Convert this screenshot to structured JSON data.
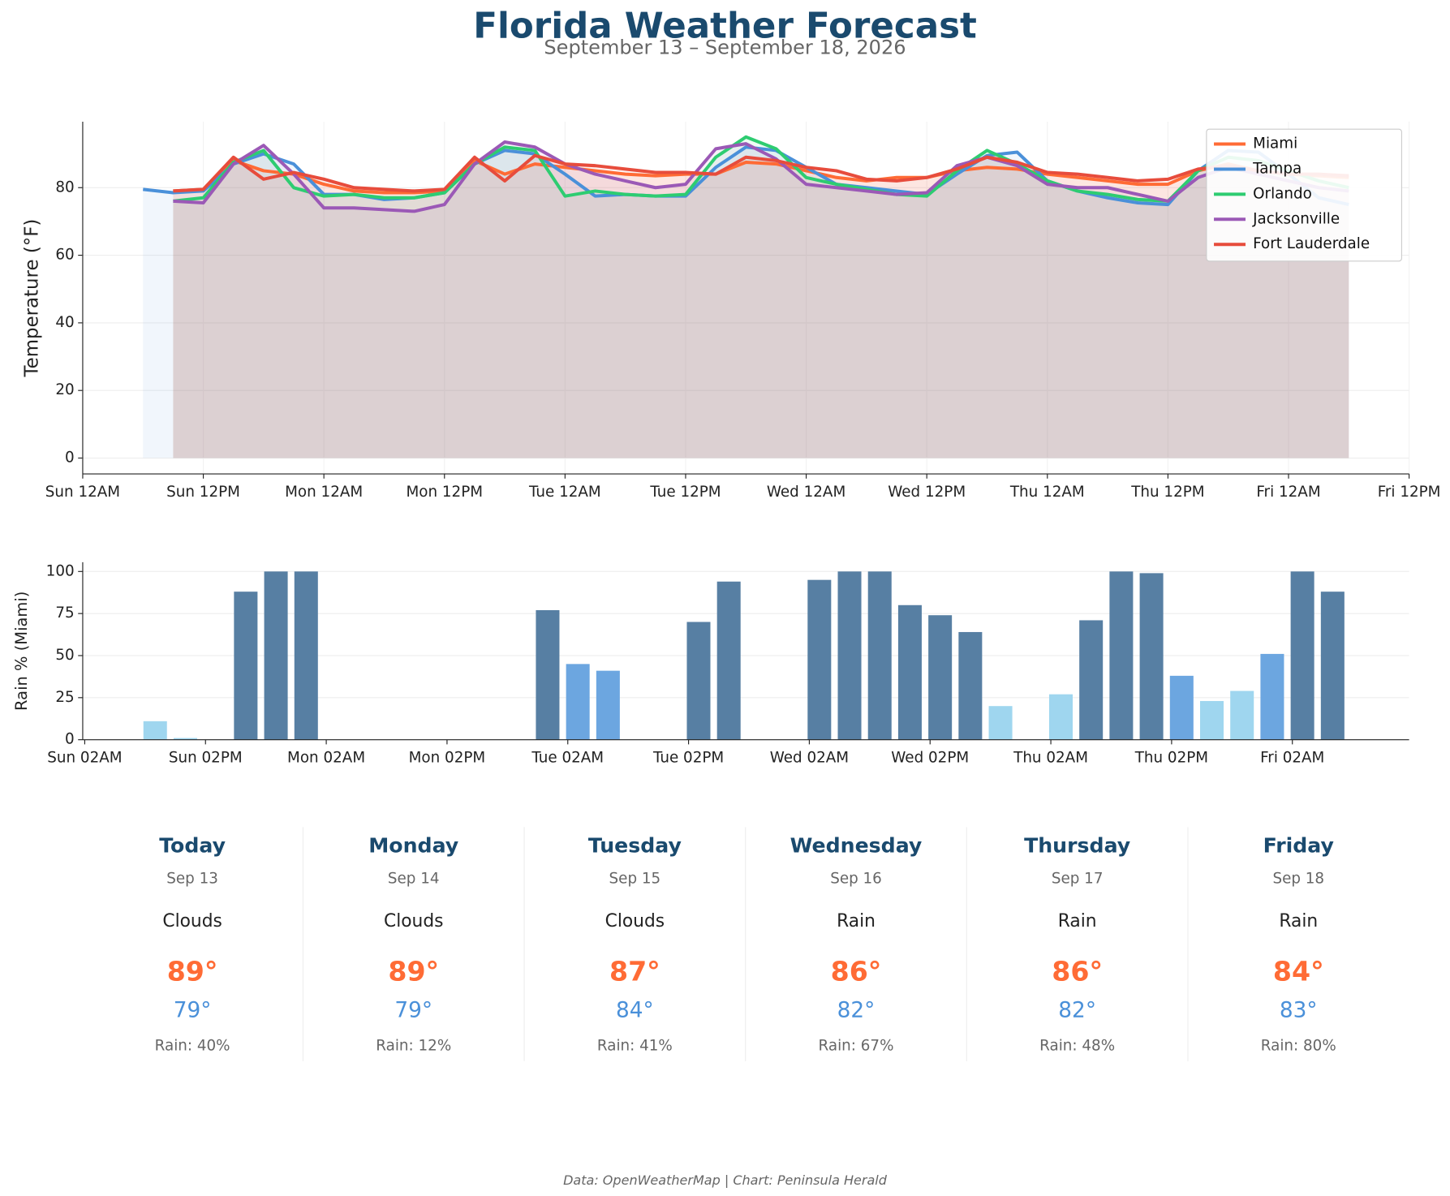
{
  "chart_data": [
    {
      "type": "line",
      "title": "Florida Weather Forecast",
      "subtitle": "September 13 – September 18, 2026",
      "ylabel": "Temperature (°F)",
      "x": [
        6,
        9,
        12,
        15,
        18,
        21,
        24,
        27,
        30,
        33,
        36,
        39,
        42,
        45,
        48,
        51,
        54,
        57,
        60,
        63,
        66,
        69,
        72,
        75,
        78,
        81,
        84,
        87,
        90,
        93,
        96,
        99,
        102,
        105,
        108,
        111,
        114,
        117,
        120,
        123,
        126
      ],
      "xlim": [
        0,
        132
      ],
      "xticks": [
        {
          "value": 0,
          "label": "Sun 12AM"
        },
        {
          "value": 12,
          "label": "Sun 12PM"
        },
        {
          "value": 24,
          "label": "Mon 12AM"
        },
        {
          "value": 36,
          "label": "Mon 12PM"
        },
        {
          "value": 48,
          "label": "Tue 12AM"
        },
        {
          "value": 60,
          "label": "Tue 12PM"
        },
        {
          "value": 72,
          "label": "Wed 12AM"
        },
        {
          "value": 84,
          "label": "Wed 12PM"
        },
        {
          "value": 96,
          "label": "Thu 12AM"
        },
        {
          "value": 108,
          "label": "Thu 12PM"
        },
        {
          "value": 120,
          "label": "Fri 12AM"
        },
        {
          "value": 132,
          "label": "Fri 12PM"
        }
      ],
      "ylim": [
        -4.7,
        99.5
      ],
      "yticks": [
        0,
        20,
        40,
        60,
        80
      ],
      "grid": true,
      "legend": "upper right",
      "fill": true,
      "series": [
        {
          "name": "Miami",
          "color": "#ff6b35",
          "values": [
            null,
            79,
            79.5,
            88,
            85,
            84,
            81,
            79,
            78.5,
            78.5,
            79,
            88,
            84,
            87,
            86,
            85,
            84,
            83.5,
            84,
            84,
            87.5,
            87,
            85,
            83,
            82,
            83,
            83,
            85,
            86,
            85.5,
            84,
            83,
            82,
            81,
            81,
            85,
            87,
            85,
            84,
            83.5,
            83
          ]
        },
        {
          "name": "Tampa",
          "color": "#4a90d9",
          "values": [
            79.5,
            78.5,
            79,
            87,
            90,
            87,
            78,
            78,
            76.5,
            77,
            78.5,
            87,
            91,
            90,
            84,
            77.5,
            78,
            77.5,
            77.5,
            86,
            92,
            91,
            86,
            81,
            80,
            79,
            78,
            84,
            89.5,
            90.5,
            82,
            79,
            77,
            75.5,
            75,
            85,
            91,
            90.5,
            84,
            77,
            75
          ]
        },
        {
          "name": "Orlando",
          "color": "#2ecc71",
          "values": [
            null,
            76,
            77,
            87.5,
            91,
            80,
            77.5,
            78,
            77,
            77,
            78.5,
            87,
            92,
            91,
            77.5,
            79,
            78,
            77.5,
            78,
            89,
            95,
            91.5,
            83,
            81,
            79.5,
            78,
            77.5,
            85,
            91,
            87,
            82,
            79,
            78,
            76.5,
            76,
            85,
            89,
            88,
            85,
            82,
            80
          ]
        },
        {
          "name": "Jacksonville",
          "color": "#9b59b6",
          "values": [
            null,
            76,
            75.5,
            87,
            92.5,
            84,
            74,
            74,
            73.5,
            73,
            75,
            87,
            93.5,
            92,
            87,
            84,
            82,
            80,
            81,
            91.5,
            93,
            88.5,
            81,
            80,
            79,
            78,
            78.5,
            86.5,
            89,
            86.5,
            81,
            80,
            80,
            78,
            76,
            83,
            86,
            84,
            82,
            80,
            79
          ]
        },
        {
          "name": "Fort Lauderdale",
          "color": "#e74c3c",
          "values": [
            null,
            79,
            79.5,
            89,
            82.5,
            84.5,
            82.5,
            80,
            79.5,
            79,
            79.5,
            89,
            82,
            89.5,
            87,
            86.5,
            85.5,
            84.5,
            84.5,
            84,
            89,
            88,
            86,
            85,
            82.5,
            82,
            83,
            85.5,
            89,
            87.5,
            84.5,
            84,
            83,
            82,
            82.5,
            85.5,
            86.5,
            85,
            84,
            84,
            83.5
          ]
        }
      ]
    },
    {
      "type": "bar",
      "ylabel": "Rain % (Miami)",
      "x": [
        9,
        12,
        15,
        18,
        21,
        24,
        27,
        30,
        33,
        36,
        39,
        42,
        45,
        48,
        51,
        54,
        57,
        60,
        63,
        66,
        69,
        72,
        75,
        78,
        81,
        84,
        87,
        90,
        93,
        96,
        99,
        102,
        105,
        108,
        111,
        114,
        117,
        120,
        123,
        126
      ],
      "values": [
        11,
        1,
        0,
        88,
        100,
        100,
        0,
        0,
        0,
        0,
        0,
        0,
        0,
        77,
        45,
        41,
        0,
        0,
        70,
        94,
        0,
        0,
        95,
        100,
        100,
        80,
        74,
        64,
        20,
        0,
        27,
        71,
        100,
        99,
        38,
        23,
        29,
        51,
        100,
        88
      ],
      "colors": [
        "#9fd6ef",
        "#9fd6ef",
        "#9fd6ef",
        "#577fa3",
        "#577fa3",
        "#577fa3",
        "#9fd6ef",
        "#9fd6ef",
        "#9fd6ef",
        "#9fd6ef",
        "#9fd6ef",
        "#9fd6ef",
        "#9fd6ef",
        "#577fa3",
        "#6ca6e0",
        "#6ca6e0",
        "#9fd6ef",
        "#9fd6ef",
        "#577fa3",
        "#577fa3",
        "#9fd6ef",
        "#9fd6ef",
        "#577fa3",
        "#577fa3",
        "#577fa3",
        "#577fa3",
        "#577fa3",
        "#577fa3",
        "#9fd6ef",
        "#9fd6ef",
        "#9fd6ef",
        "#577fa3",
        "#577fa3",
        "#577fa3",
        "#6ca6e0",
        "#9fd6ef",
        "#9fd6ef",
        "#6ca6e0",
        "#577fa3",
        "#577fa3"
      ],
      "xlim": [
        1.8,
        133.6
      ],
      "xticks": [
        {
          "value": 2,
          "label": "Sun 02AM"
        },
        {
          "value": 14,
          "label": "Sun 02PM"
        },
        {
          "value": 26,
          "label": "Mon 02AM"
        },
        {
          "value": 38,
          "label": "Mon 02PM"
        },
        {
          "value": 50,
          "label": "Tue 02AM"
        },
        {
          "value": 62,
          "label": "Tue 02PM"
        },
        {
          "value": 74,
          "label": "Wed 02AM"
        },
        {
          "value": 86,
          "label": "Wed 02PM"
        },
        {
          "value": 98,
          "label": "Thu 02AM"
        },
        {
          "value": 110,
          "label": "Thu 02PM"
        },
        {
          "value": 122,
          "label": "Fri 02AM"
        }
      ],
      "ylim": [
        0,
        105.5
      ],
      "yticks": [
        0,
        25,
        50,
        75,
        100
      ],
      "grid": true
    }
  ],
  "cards": [
    {
      "day": "Today",
      "date": "Sep 13",
      "condition": "Clouds",
      "high": "89°",
      "low": "79°",
      "rain": "Rain: 40%"
    },
    {
      "day": "Monday",
      "date": "Sep 14",
      "condition": "Clouds",
      "high": "89°",
      "low": "79°",
      "rain": "Rain: 12%"
    },
    {
      "day": "Tuesday",
      "date": "Sep 15",
      "condition": "Clouds",
      "high": "87°",
      "low": "84°",
      "rain": "Rain: 41%"
    },
    {
      "day": "Wednesday",
      "date": "Sep 16",
      "condition": "Rain",
      "high": "86°",
      "low": "82°",
      "rain": "Rain: 67%"
    },
    {
      "day": "Thursday",
      "date": "Sep 17",
      "condition": "Rain",
      "high": "86°",
      "low": "82°",
      "rain": "Rain: 48%"
    },
    {
      "day": "Friday",
      "date": "Sep 18",
      "condition": "Rain",
      "high": "84°",
      "low": "83°",
      "rain": "Rain: 80%"
    }
  ],
  "footer": "Data: OpenWeatherMap | Chart: Peninsula Herald"
}
